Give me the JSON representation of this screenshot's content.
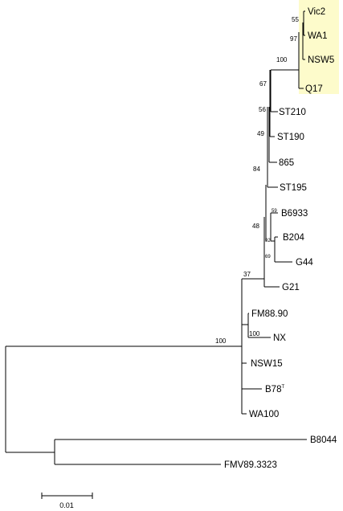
{
  "highlight_color": "#fdfbcb",
  "taxa": [
    "Vic2",
    "WA1",
    "NSW5",
    "Q17",
    "ST210",
    "ST190",
    "865",
    "ST195",
    "B6933",
    "B204",
    "G44",
    "G21",
    "FM88.90",
    "NX",
    "NSW15",
    "B78",
    "WA100",
    "B8044",
    "FMV89.3323"
  ],
  "type_strain_marker": "T",
  "highlighted_clade": [
    "Vic2",
    "WA1",
    "NSW5",
    "Q17"
  ],
  "bootstrap": [
    "55",
    "97",
    "100",
    "67",
    "56",
    "49",
    "84",
    "59",
    "92",
    "69",
    "48",
    "37",
    "100",
    "100"
  ],
  "scale_bar": {
    "label": "0.01",
    "value": 0.01
  }
}
